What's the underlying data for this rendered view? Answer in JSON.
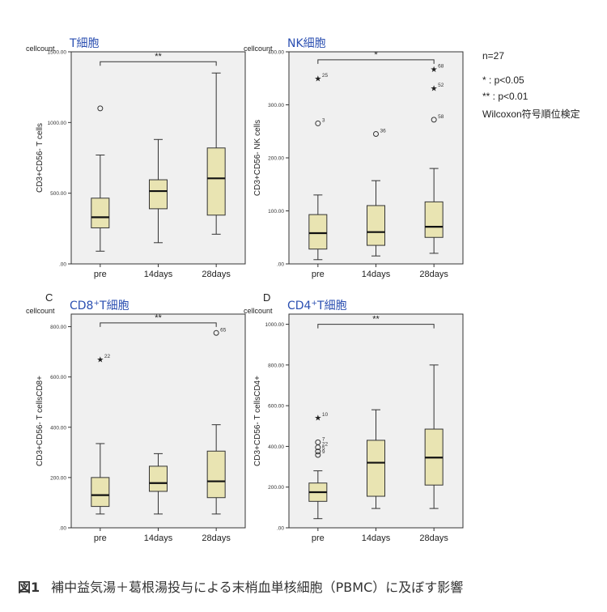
{
  "notes": {
    "n": "n=27",
    "sig1": "* : p<0.05",
    "sig2": "** : p<0.01",
    "test": "Wilcoxon符号順位検定"
  },
  "caption": {
    "label": "図1",
    "text": "補中益気湯＋葛根湯投与による末梢血単核細胞（PBMC）に及ぼす影響"
  },
  "colors": {
    "box_fill": "#e9e4b2",
    "title": "#2b4fb1",
    "panel_bg": "#f0f0f0"
  },
  "chart_data": [
    {
      "type": "box",
      "panel_letter": "",
      "title_pre": "T細胞",
      "title_sup": "",
      "title_post": "",
      "ylabel": "CD3+CD56- T cells",
      "y_unit_label": "cellcount",
      "ylim": [
        0,
        1500
      ],
      "yticks": [
        ".00",
        "500.00",
        "1000.00",
        "1500.00"
      ],
      "ytick_values": [
        0,
        500,
        1000,
        1500
      ],
      "categories": [
        "pre",
        "14days",
        "28days"
      ],
      "boxes": [
        {
          "whisker_low": 90,
          "q1": 255,
          "median": 330,
          "q3": 465,
          "whisker_high": 770
        },
        {
          "whisker_low": 150,
          "q1": 390,
          "median": 515,
          "q3": 595,
          "whisker_high": 880
        },
        {
          "whisker_low": 210,
          "q1": 345,
          "median": 605,
          "q3": 820,
          "whisker_high": 1350
        }
      ],
      "outliers": [
        {
          "cat": 0,
          "value": 1100,
          "symbol": "circle",
          "label": ""
        }
      ],
      "significance": {
        "from": 0,
        "to": 2,
        "text": "**",
        "level": 1430
      }
    },
    {
      "type": "box",
      "panel_letter": "",
      "title_pre": "NK細胞",
      "title_sup": "",
      "title_post": "",
      "ylabel": "CD3+CD56- NK cells",
      "y_unit_label": "cellcount",
      "ylim": [
        0,
        400
      ],
      "yticks": [
        ".00",
        "100.00",
        "200.00",
        "300.00",
        "400.00"
      ],
      "ytick_values": [
        0,
        100,
        200,
        300,
        400
      ],
      "categories": [
        "pre",
        "14days",
        "28days"
      ],
      "boxes": [
        {
          "whisker_low": 8,
          "q1": 28,
          "median": 58,
          "q3": 93,
          "whisker_high": 130
        },
        {
          "whisker_low": 15,
          "q1": 35,
          "median": 60,
          "q3": 110,
          "whisker_high": 157
        },
        {
          "whisker_low": 20,
          "q1": 50,
          "median": 70,
          "q3": 117,
          "whisker_high": 180
        }
      ],
      "outliers": [
        {
          "cat": 0,
          "value": 350,
          "symbol": "star",
          "label": "25"
        },
        {
          "cat": 0,
          "value": 265,
          "symbol": "circle",
          "label": "3"
        },
        {
          "cat": 1,
          "value": 245,
          "symbol": "circle",
          "label": "36"
        },
        {
          "cat": 2,
          "value": 367,
          "symbol": "star",
          "label": "68"
        },
        {
          "cat": 2,
          "value": 331,
          "symbol": "star",
          "label": "52"
        },
        {
          "cat": 2,
          "value": 272,
          "symbol": "circle",
          "label": "58"
        }
      ],
      "significance": {
        "from": 0,
        "to": 2,
        "text": "*",
        "level": 385
      }
    },
    {
      "type": "box",
      "panel_letter": "C",
      "title_pre": "CD8",
      "title_sup": "+",
      "title_post": "T細胞",
      "ylabel": "CD3+CD56- T cellsCD8+",
      "y_unit_label": "cellcount",
      "ylim": [
        0,
        850
      ],
      "yticks": [
        ".00",
        "200.00",
        "400.00",
        "600.00",
        "800.00"
      ],
      "ytick_values": [
        0,
        200,
        400,
        600,
        800
      ],
      "categories": [
        "pre",
        "14days",
        "28days"
      ],
      "boxes": [
        {
          "whisker_low": 55,
          "q1": 85,
          "median": 130,
          "q3": 200,
          "whisker_high": 335
        },
        {
          "whisker_low": 55,
          "q1": 145,
          "median": 178,
          "q3": 245,
          "whisker_high": 295
        },
        {
          "whisker_low": 55,
          "q1": 120,
          "median": 185,
          "q3": 305,
          "whisker_high": 410
        }
      ],
      "outliers": [
        {
          "cat": 0,
          "value": 670,
          "symbol": "star",
          "label": "22"
        },
        {
          "cat": 2,
          "value": 775,
          "symbol": "circle",
          "label": "65"
        }
      ],
      "significance": {
        "from": 0,
        "to": 2,
        "text": "**",
        "level": 815
      }
    },
    {
      "type": "box",
      "panel_letter": "D",
      "title_pre": "CD4",
      "title_sup": "+",
      "title_post": "T細胞",
      "ylabel": "CD3+CD56- T cellsCD4+",
      "y_unit_label": "cellcount",
      "ylim": [
        0,
        1050
      ],
      "yticks": [
        ".00",
        "200.00",
        "400.00",
        "600.00",
        "800.00",
        "1000.00"
      ],
      "ytick_values": [
        0,
        200,
        400,
        600,
        800,
        1000
      ],
      "categories": [
        "pre",
        "14days",
        "28days"
      ],
      "boxes": [
        {
          "whisker_low": 45,
          "q1": 130,
          "median": 175,
          "q3": 220,
          "whisker_high": 280
        },
        {
          "whisker_low": 95,
          "q1": 155,
          "median": 320,
          "q3": 430,
          "whisker_high": 580
        },
        {
          "whisker_low": 95,
          "q1": 210,
          "median": 345,
          "q3": 485,
          "whisker_high": 800
        }
      ],
      "outliers": [
        {
          "cat": 0,
          "value": 540,
          "symbol": "star",
          "label": "10"
        },
        {
          "cat": 0,
          "value": 420,
          "symbol": "circle",
          "label": "7"
        },
        {
          "cat": 0,
          "value": 395,
          "symbol": "circle",
          "label": "22"
        },
        {
          "cat": 0,
          "value": 375,
          "symbol": "circle",
          "label": "5"
        },
        {
          "cat": 0,
          "value": 358,
          "symbol": "circle",
          "label": "9"
        }
      ],
      "significance": {
        "from": 0,
        "to": 2,
        "text": "**",
        "level": 1000
      }
    }
  ]
}
